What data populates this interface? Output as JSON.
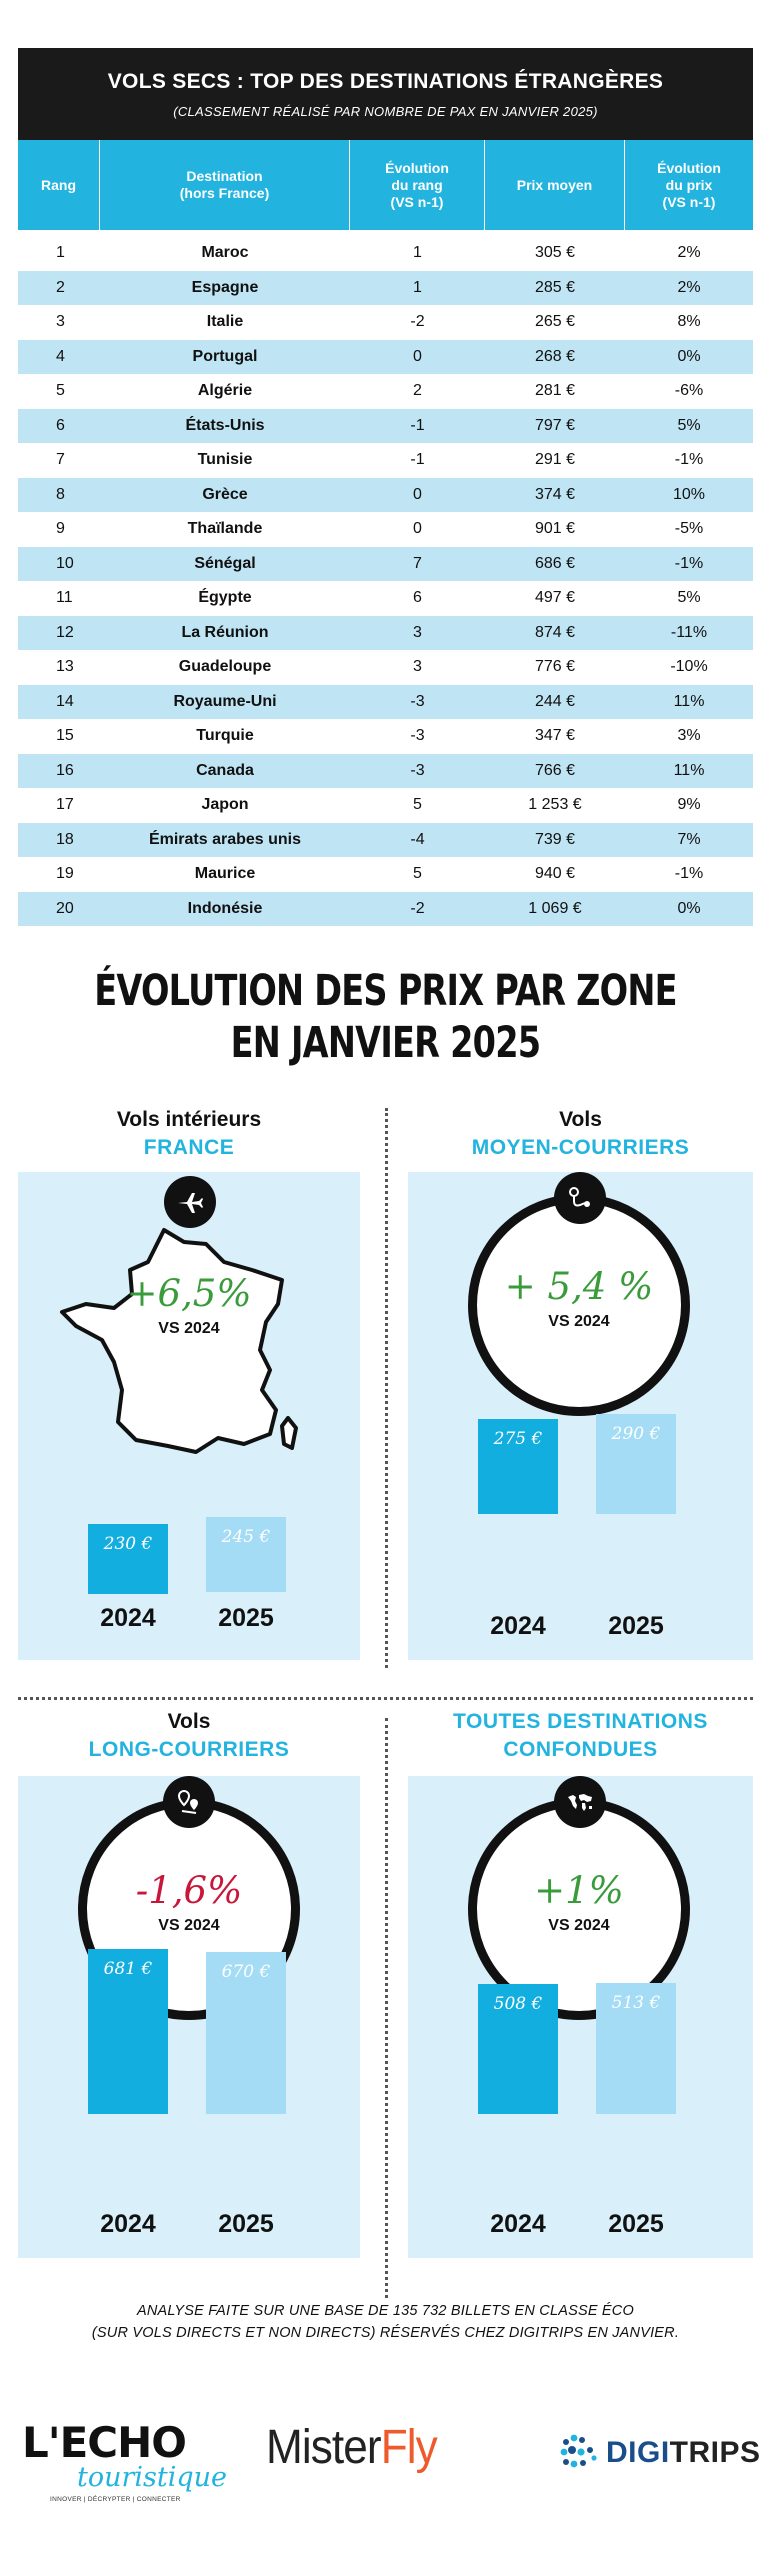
{
  "table": {
    "title": "VOLS SECS : TOP DES DESTINATIONS ÉTRANGÈRES",
    "subtitle": "(CLASSEMENT RÉALISÉ PAR NOMBRE DE PAX EN JANVIER 2025)",
    "headers": [
      "Rang",
      "Destination (hors France)",
      "Évolution du rang (VS n-1)",
      "Prix moyen",
      "Évolution du prix (VS n-1)"
    ],
    "rows": [
      [
        "1",
        "Maroc",
        "1",
        "305 €",
        "2%"
      ],
      [
        "2",
        "Espagne",
        "1",
        "285 €",
        "2%"
      ],
      [
        "3",
        "Italie",
        "-2",
        "265 €",
        "8%"
      ],
      [
        "4",
        "Portugal",
        "0",
        "268 €",
        "0%"
      ],
      [
        "5",
        "Algérie",
        "2",
        "281 €",
        "-6%"
      ],
      [
        "6",
        "États-Unis",
        "-1",
        "797 €",
        "5%"
      ],
      [
        "7",
        "Tunisie",
        "-1",
        "291 €",
        "-1%"
      ],
      [
        "8",
        "Grèce",
        "0",
        "374 €",
        "10%"
      ],
      [
        "9",
        "Thaïlande",
        "0",
        "901 €",
        "-5%"
      ],
      [
        "10",
        "Sénégal",
        "7",
        "686 €",
        "-1%"
      ],
      [
        "11",
        "Égypte",
        "6",
        "497 €",
        "5%"
      ],
      [
        "12",
        "La Réunion",
        "3",
        "874 €",
        "-11%"
      ],
      [
        "13",
        "Guadeloupe",
        "3",
        "776 €",
        "-10%"
      ],
      [
        "14",
        "Royaume-Uni",
        "-3",
        "244 €",
        "11%"
      ],
      [
        "15",
        "Turquie",
        "-3",
        "347 €",
        "3%"
      ],
      [
        "16",
        "Canada",
        "-3",
        "766 €",
        "11%"
      ],
      [
        "17",
        "Japon",
        "5",
        "1 253 €",
        "9%"
      ],
      [
        "18",
        "Émirats arabes unis",
        "-4",
        "739 €",
        "7%"
      ],
      [
        "19",
        "Maurice",
        "5",
        "940 €",
        "-1%"
      ],
      [
        "20",
        "Indonésie",
        "-2",
        "1 069 €",
        "0%"
      ]
    ]
  },
  "section": {
    "title_line1": "ÉVOLUTION DES PRIX PAR ZONE",
    "title_line2": "EN JANVIER 2025"
  },
  "chart_data": [
    {
      "type": "table",
      "title": "VOLS SECS : TOP DES DESTINATIONS ÉTRANGÈRES",
      "columns": [
        "Rang",
        "Destination (hors France)",
        "Évolution du rang (VS n-1)",
        "Prix moyen",
        "Évolution du prix (VS n-1)"
      ]
    },
    {
      "type": "bar",
      "title_line1": "Vols intérieurs",
      "title_line2": "FRANCE",
      "change": "+6,5%",
      "vs_label": "VS 2024",
      "categories": [
        "2024",
        "2025"
      ],
      "values": [
        230,
        245
      ],
      "labels": [
        "230 €",
        "245 €"
      ],
      "color_2024": "#13aee0",
      "color_2025": "#a3dcf4",
      "icon": "airplane-icon"
    },
    {
      "type": "bar",
      "title_line1": "Vols",
      "title_line2": "MOYEN-COURRIERS",
      "change": "+ 5,4 %",
      "vs_label": "VS 2024",
      "categories": [
        "2024",
        "2025"
      ],
      "values": [
        275,
        290
      ],
      "labels": [
        "275 €",
        "290 €"
      ],
      "icon": "route-pin-icon"
    },
    {
      "type": "bar",
      "title_line1": "Vols",
      "title_line2": "LONG-COURRIERS",
      "change": "-1,6%",
      "vs_label": "VS 2024",
      "categories": [
        "2024",
        "2025"
      ],
      "values": [
        681,
        670
      ],
      "labels": [
        "681 €",
        "670 €"
      ],
      "icon": "map-pins-icon",
      "change_color": "#c8173b"
    },
    {
      "type": "bar",
      "title_line1": "TOUTES DESTINATIONS",
      "title_line2": "CONFONDUES",
      "change": "+1%",
      "vs_label": "VS 2024",
      "categories": [
        "2024",
        "2025"
      ],
      "values": [
        508,
        513
      ],
      "labels": [
        "508 €",
        "513 €"
      ],
      "icon": "world-map-icon"
    }
  ],
  "footer": {
    "note_line1": "ANALYSE FAITE SUR UNE BASE DE 135 732 BILLETS EN CLASSE ÉCO",
    "note_line2": "(SUR VOLS DIRECTS ET NON DIRECTS) RÉSERVÉS CHEZ DIGITRIPS EN JANVIER.",
    "logo_echo_main": "L'ECHO",
    "logo_echo_script": "touristique",
    "logo_echo_tag": "INNOVER | DÉCRYPTER | CONNECTER",
    "logo_misterfly_a": "Mister",
    "logo_misterfly_b": "Fly",
    "logo_digitrips_a": "DIGI",
    "logo_digitrips_b": "TRIPS"
  }
}
